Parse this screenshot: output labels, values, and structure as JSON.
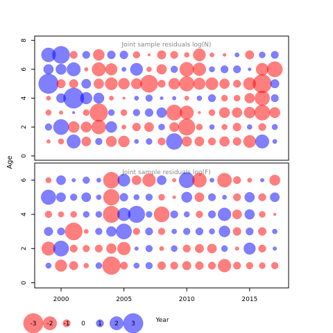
{
  "chart_data": {
    "type": "scatter",
    "subtype": "bubble-residuals",
    "ylabel": "Age",
    "xlabel": "Year",
    "x_ticks": [
      2000,
      2005,
      2010,
      2015
    ],
    "xlim": [
      1997.9,
      2018.1
    ],
    "positive_color": "#0000ff",
    "negative_color": "#ff0000",
    "legend": {
      "position": "bottom-left",
      "entries": [
        "-3",
        "-2",
        "-1",
        "0",
        "1",
        "2",
        "3"
      ],
      "values": [
        -3,
        -2,
        -1,
        0,
        1,
        2,
        3
      ]
    },
    "panels": [
      {
        "title": "Joint sample residuals log(N)",
        "y_ticks": [
          "0",
          "2",
          "4",
          "6",
          "8"
        ],
        "ylim": [
          -0.3,
          8.3
        ],
        "years": [
          1999,
          2000,
          2001,
          2002,
          2003,
          2004,
          2005,
          2006,
          2007,
          2008,
          2009,
          2010,
          2011,
          2012,
          2013,
          2014,
          2015,
          2016,
          2017
        ],
        "ages": [
          1,
          2,
          3,
          4,
          5,
          6,
          7
        ],
        "values": [
          [
            -0.4,
            -0.7,
            2.0,
            -1.3,
            0.9,
            -1.5,
            -1.6,
            0.5,
            0.8,
            -1.0,
            2.4,
            -1.4,
            -1.3,
            -1.0,
            -1.4,
            -1.1,
            -1.8,
            2.0,
            0.5
          ],
          [
            0.9,
            2.3,
            -1.6,
            -1.5,
            -2.1,
            1.6,
            -0.5,
            -1.1,
            -1.3,
            0.8,
            -1.3,
            -2.5,
            -0.8,
            0.6,
            -0.7,
            -1.1,
            0.6,
            -1.0,
            0.7
          ],
          [
            -0.7,
            -0.4,
            0.2,
            -0.8,
            -2.7,
            0.8,
            -0.8,
            0.9,
            1.1,
            1.4,
            -2.3,
            -2.0,
            -0.2,
            -0.8,
            -1.5,
            -1.4,
            -1.6,
            -2.3,
            -1.5
          ],
          [
            -0.5,
            1.3,
            3.1,
            1.7,
            1.5,
            -0.5,
            -0.2,
            0.5,
            0.9,
            0.3,
            0.4,
            -0.5,
            0.6,
            1.0,
            -0.8,
            -0.8,
            -1.4,
            -2.2,
            1.0
          ],
          [
            3.0,
            -1.2,
            -1.2,
            1.3,
            -1.4,
            -1.8,
            -1.6,
            -1.5,
            -2.6,
            -1.0,
            -1.6,
            -2.2,
            -1.7,
            -1.8,
            -1.4,
            -1.0,
            -1.8,
            -2.8,
            1.2
          ],
          [
            1.4,
            1.5,
            2.0,
            -0.4,
            -2.0,
            -1.7,
            0.5,
            1.8,
            -0.6,
            -1.4,
            0.9,
            -2.1,
            -1.9,
            0.7,
            1.0,
            1.0,
            0.3,
            -1.8,
            -2.3
          ],
          [
            2.1,
            2.6,
            -1.0,
            1.0,
            -1.6,
            1.1,
            1.1,
            -0.9,
            -0.2,
            -1.2,
            -1.0,
            -0.6,
            -1.8,
            -0.5,
            -0.3,
            0.5,
            -1.2,
            0.8,
            1.0
          ]
        ]
      },
      {
        "title": "Joint sample residuals log(F)",
        "y_ticks": [
          "0",
          "2",
          "4",
          "6"
        ],
        "ylim": [
          -0.3,
          7.0
        ],
        "years": [
          1999,
          2000,
          2001,
          2002,
          2003,
          2004,
          2005,
          2006,
          2007,
          2008,
          2009,
          2010,
          2011,
          2012,
          2013,
          2014,
          2015,
          2016,
          2017
        ],
        "ages": [
          1,
          2,
          3,
          4,
          5,
          6
        ],
        "values": [
          [
            0.7,
            -1.7,
            -1.2,
            -0.6,
            0.8,
            -2.7,
            -1.0,
            0.7,
            0.9,
            -1.1,
            -1.0,
            -1.2,
            -1.1,
            -1.0,
            -1.9,
            -1.0,
            -0.9,
            -0.8,
            -0.9
          ],
          [
            -2.0,
            2.3,
            -1.0,
            -0.9,
            -1.0,
            -1.4,
            -1.9,
            0.4,
            0.9,
            -0.5,
            0.8,
            -1.0,
            -1.2,
            -1.3,
            0.8,
            -0.4,
            1.7,
            -1.0,
            0.4
          ],
          [
            1.2,
            1.0,
            -2.6,
            -0.5,
            0.9,
            1.4,
            2.3,
            -0.9,
            1.0,
            -0.9,
            0.6,
            0.9,
            1.0,
            0.7,
            1.6,
            -1.1,
            1.0,
            -1.1,
            0.6
          ],
          [
            -0.9,
            -0.7,
            -0.8,
            0.8,
            0.8,
            -2.5,
            1.9,
            2.5,
            0.8,
            -2.3,
            1.0,
            0.7,
            -0.9,
            1.0,
            1.9,
            -1.3,
            1.4,
            -0.8,
            -0.2
          ],
          [
            2.2,
            1.3,
            0.9,
            1.3,
            0.6,
            -2.4,
            1.1,
            0.7,
            0.9,
            -0.8,
            -0.3,
            1.5,
            -1.3,
            1.0,
            0.5,
            -1.0,
            1.4,
            -1.0,
            1.3
          ],
          [
            -0.7,
            1.3,
            0.4,
            0.9,
            0.5,
            -2.4,
            1.8,
            -1.3,
            -1.9,
            1.3,
            -0.4,
            2.3,
            -2.1,
            0.5,
            -2.1,
            -1.0,
            -0.5,
            0.4,
            -1.5
          ]
        ]
      }
    ]
  }
}
